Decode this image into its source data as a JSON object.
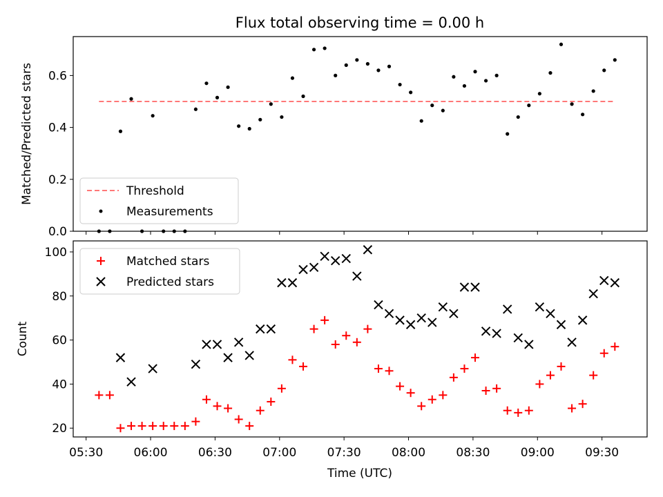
{
  "figure": {
    "title": "Flux total observing time = 0.00 h",
    "xlabel": "Time (UTC)"
  },
  "chart_data": [
    {
      "type": "scatter",
      "ylabel": "Matched/Predicted stars",
      "xlim": [
        "05:24",
        "09:51"
      ],
      "ylim": [
        0,
        0.75
      ],
      "yticks": [
        0.0,
        0.2,
        0.4,
        0.6
      ],
      "ytick_labels": [
        "0.0",
        "0.2",
        "0.4",
        "0.6"
      ],
      "threshold": {
        "name": "Threshold",
        "value": 0.5,
        "color": "#ff7777",
        "style": "dashed",
        "x": [
          "05:36",
          "09:36"
        ]
      },
      "legend": {
        "placement": "lower-left"
      },
      "series": [
        {
          "name": "Measurements",
          "marker": "dot",
          "color": "#000000",
          "x": [
            "05:36",
            "05:41",
            "05:46",
            "05:51",
            "05:56",
            "06:01",
            "06:06",
            "06:11",
            "06:16",
            "06:21",
            "06:26",
            "06:31",
            "06:36",
            "06:41",
            "06:46",
            "06:51",
            "06:56",
            "07:01",
            "07:06",
            "07:11",
            "07:16",
            "07:21",
            "07:26",
            "07:31",
            "07:36",
            "07:41",
            "07:46",
            "07:51",
            "07:56",
            "08:01",
            "08:06",
            "08:11",
            "08:16",
            "08:21",
            "08:26",
            "08:31",
            "08:36",
            "08:41",
            "08:46",
            "08:51",
            "08:56",
            "09:01",
            "09:06",
            "09:11",
            "09:16",
            "09:21",
            "09:26",
            "09:31",
            "09:36"
          ],
          "y": [
            0.0,
            0.0,
            0.385,
            0.51,
            0.0,
            0.445,
            0.0,
            0.0,
            0.0,
            0.47,
            0.57,
            0.515,
            0.555,
            0.405,
            0.395,
            0.43,
            0.49,
            0.44,
            0.59,
            0.52,
            0.7,
            0.705,
            0.6,
            0.64,
            0.66,
            0.645,
            0.62,
            0.635,
            0.565,
            0.535,
            0.425,
            0.485,
            0.465,
            0.595,
            0.56,
            0.615,
            0.58,
            0.6,
            0.375,
            0.44,
            0.485,
            0.53,
            0.61,
            0.72,
            0.49,
            0.45,
            0.54,
            0.62,
            0.66
          ]
        }
      ]
    },
    {
      "type": "scatter",
      "ylabel": "Count",
      "xlim": [
        "05:24",
        "09:51"
      ],
      "ylim": [
        16,
        105
      ],
      "yticks": [
        20,
        40,
        60,
        80,
        100
      ],
      "ytick_labels": [
        "20",
        "40",
        "60",
        "80",
        "100"
      ],
      "xticks": [
        "05:30",
        "06:00",
        "06:30",
        "07:00",
        "07:30",
        "08:00",
        "08:30",
        "09:00",
        "09:30"
      ],
      "legend": {
        "placement": "upper-left"
      },
      "series": [
        {
          "name": "Matched stars",
          "marker": "plus",
          "color": "#ff0000",
          "x": [
            "05:36",
            "05:41",
            "05:46",
            "05:51",
            "05:56",
            "06:01",
            "06:06",
            "06:11",
            "06:16",
            "06:21",
            "06:26",
            "06:31",
            "06:36",
            "06:41",
            "06:46",
            "06:51",
            "06:56",
            "07:01",
            "07:06",
            "07:11",
            "07:16",
            "07:21",
            "07:26",
            "07:31",
            "07:36",
            "07:41",
            "07:46",
            "07:51",
            "07:56",
            "08:01",
            "08:06",
            "08:11",
            "08:16",
            "08:21",
            "08:26",
            "08:31",
            "08:36",
            "08:41",
            "08:46",
            "08:51",
            "08:56",
            "09:01",
            "09:06",
            "09:11",
            "09:16",
            "09:21",
            "09:26",
            "09:31",
            "09:36"
          ],
          "y": [
            35,
            35,
            20,
            21,
            21,
            21,
            21,
            21,
            21,
            23,
            33,
            30,
            29,
            24,
            21,
            28,
            32,
            38,
            51,
            48,
            65,
            69,
            58,
            62,
            59,
            65,
            47,
            46,
            39,
            36,
            30,
            33,
            35,
            43,
            47,
            52,
            37,
            38,
            28,
            27,
            28,
            40,
            44,
            48,
            29,
            31,
            44,
            54,
            57
          ]
        },
        {
          "name": "Predicted stars",
          "marker": "x",
          "color": "#000000",
          "x": [
            "05:46",
            "05:51",
            "06:01",
            "06:21",
            "06:26",
            "06:31",
            "06:36",
            "06:41",
            "06:46",
            "06:51",
            "06:56",
            "07:01",
            "07:06",
            "07:11",
            "07:16",
            "07:21",
            "07:26",
            "07:31",
            "07:36",
            "07:41",
            "07:46",
            "07:51",
            "07:56",
            "08:01",
            "08:06",
            "08:11",
            "08:16",
            "08:21",
            "08:26",
            "08:31",
            "08:36",
            "08:41",
            "08:46",
            "08:51",
            "08:56",
            "09:01",
            "09:06",
            "09:11",
            "09:16",
            "09:21",
            "09:26",
            "09:31",
            "09:36"
          ],
          "y": [
            52,
            41,
            47,
            49,
            58,
            58,
            52,
            59,
            53,
            65,
            65,
            86,
            86,
            92,
            93,
            98,
            96,
            97,
            89,
            101,
            76,
            72,
            69,
            67,
            70,
            68,
            75,
            72,
            84,
            84,
            64,
            63,
            74,
            61,
            58,
            75,
            72,
            67,
            59,
            69,
            81,
            87,
            86
          ]
        }
      ]
    }
  ]
}
